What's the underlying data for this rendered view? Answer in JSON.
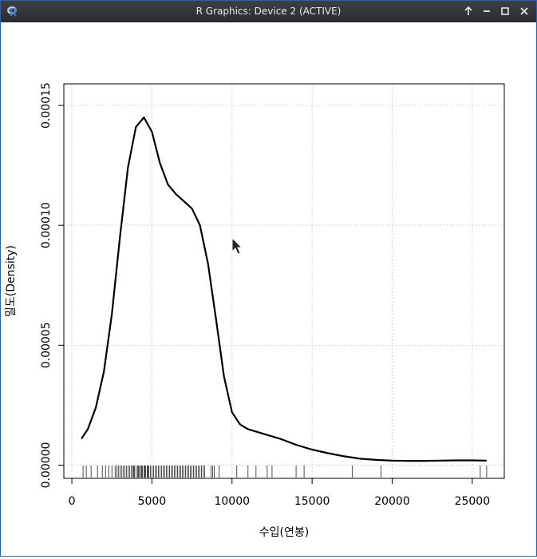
{
  "window": {
    "title": "R Graphics: Device 2 (ACTIVE)",
    "icons": [
      "r-logo-icon",
      "arrow-up-icon",
      "minimize-icon",
      "maximize-icon",
      "close-icon"
    ],
    "colors": {
      "titlebar": "#2e3035",
      "border": "#2f5fa8",
      "curve": "#000000",
      "grid": "#c8c8c8"
    }
  },
  "chart_data": {
    "type": "line",
    "title": "",
    "xlabel": "수입(연봉)",
    "ylabel": "밀도(Density)",
    "xlim": [
      -500,
      27000
    ],
    "ylim": [
      -5.5e-06,
      0.000159
    ],
    "x_ticks": [
      0,
      5000,
      10000,
      15000,
      20000,
      25000
    ],
    "x_tick_labels": [
      "0",
      "5000",
      "10000",
      "15000",
      "20000",
      "25000"
    ],
    "y_ticks": [
      0,
      5e-05,
      0.0001,
      0.00015
    ],
    "y_tick_labels": [
      "0.00000",
      "0.00005",
      "0.00010",
      "0.00015"
    ],
    "grid": true,
    "grid_style": "dotted",
    "series": [
      {
        "x": [
          600,
          1000,
          1500,
          2000,
          2500,
          3000,
          3500,
          4000,
          4500,
          5000,
          5500,
          6000,
          6500,
          7000,
          7500,
          8000,
          8500,
          9000,
          9500,
          10000,
          10500,
          11000,
          12000,
          13000,
          14000,
          15000,
          16000,
          17000,
          18000,
          19000,
          20000,
          21000,
          22000,
          23000,
          24000,
          25000,
          25900
        ],
        "y": [
          1.1e-05,
          1.5e-05,
          2.4e-05,
          3.9e-05,
          6.3e-05,
          9.5e-05,
          0.000124,
          0.000141,
          0.000145,
          0.000139,
          0.000126,
          0.000117,
          0.000113,
          0.00011,
          0.000107,
          0.0001,
          8.4e-05,
          6.1e-05,
          3.7e-05,
          2.2e-05,
          1.7e-05,
          1.5e-05,
          1.3e-05,
          1.1e-05,
          8.5e-06,
          6.5e-06,
          5e-06,
          3.7e-06,
          2.7e-06,
          2.2e-06,
          1.9e-06,
          1.8e-06,
          1.8e-06,
          1.9e-06,
          2e-06,
          2e-06,
          1.9e-06
        ]
      }
    ],
    "rug": [
      700,
      900,
      1200,
      1600,
      1900,
      2100,
      2300,
      2500,
      2700,
      2800,
      2900,
      3000,
      3100,
      3200,
      3300,
      3400,
      3500,
      3600,
      3700,
      3800,
      3850,
      3900,
      4000,
      4100,
      4150,
      4200,
      4300,
      4350,
      4400,
      4500,
      4550,
      4600,
      4700,
      4750,
      4800,
      4900,
      5000,
      5100,
      5200,
      5300,
      5400,
      5500,
      5600,
      5700,
      5800,
      5900,
      6000,
      6100,
      6200,
      6300,
      6400,
      6500,
      6600,
      6700,
      6800,
      6900,
      7000,
      7100,
      7200,
      7300,
      7400,
      7500,
      7600,
      7700,
      7800,
      7900,
      8000,
      8100,
      8200,
      8300,
      8700,
      8800,
      8900,
      9200,
      10300,
      11000,
      11500,
      12200,
      12500,
      14000,
      14500,
      17500,
      19300,
      25500,
      25900
    ]
  }
}
